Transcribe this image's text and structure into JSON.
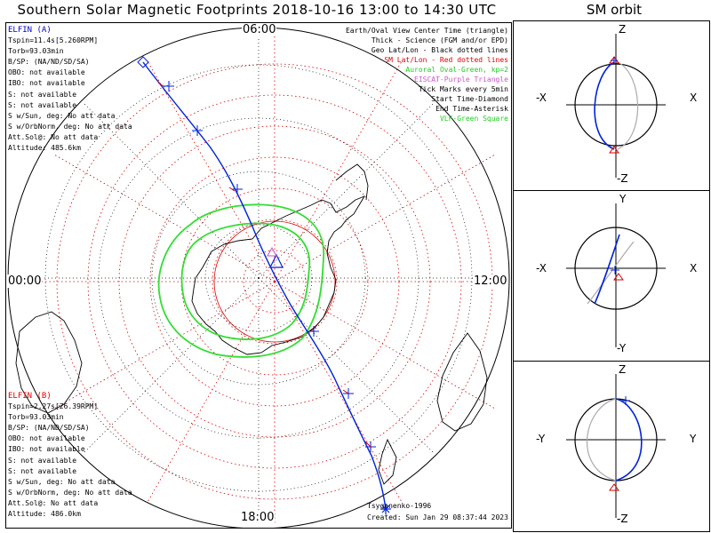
{
  "title": "Southern Solar Magnetic Footprints 2018-10-16 13:00 to 14:30 UTC",
  "sm_orbit_title": "SM orbit",
  "mlt_labels": {
    "top": "06:00",
    "left": "00:00",
    "right": "12:00",
    "bottom": "18:00"
  },
  "legend": [
    {
      "text": "Earth/Oval View Center Time (triangle)",
      "color": "#000000"
    },
    {
      "text": "Thick - Science (FGM and/or EPD)",
      "color": "#000000"
    },
    {
      "text": "Geo Lat/Lon - Black dotted lines",
      "color": "#000000"
    },
    {
      "text": "SM Lat/Lon - Red dotted lines",
      "color": "#e00000"
    },
    {
      "text": "Auroral Oval-Green, kp=2",
      "color": "#22cc22"
    },
    {
      "text": "EISCAT-Purple Triangle",
      "color": "#cc55cc"
    },
    {
      "text": "Tick Marks every 5min",
      "color": "#000000"
    },
    {
      "text": "Start Time-Diamond",
      "color": "#000000"
    },
    {
      "text": "End Time-Asterisk",
      "color": "#000000"
    },
    {
      "text": "VLF-Green Square",
      "color": "#22cc22"
    }
  ],
  "probe_a": {
    "name": "ELFIN (A)",
    "color": "#0000cc",
    "lines": [
      "Tspin=11.4s[5.260RPM]",
      "Torb=93.03min",
      "B/SP: (NA/ND/SD/SA)",
      "OBO: not available",
      "IBO: not available",
      "S: not available",
      "S: not available",
      "S w/Sun, deg: No att data",
      "S w/OrbNorm, deg: No att data",
      "Att.Sol@: No att data",
      "Altitude: 485.6km"
    ]
  },
  "probe_b": {
    "name": "ELFIN (B)",
    "color": "#e00000",
    "lines": [
      "Tspin=2.27s[26.39RPM]",
      "Torb=93.03min",
      "B/SP: (NA/ND/SD/SA)",
      "OBO: not available",
      "IBO: not available",
      "S: not available",
      "S: not available",
      "S w/Sun, deg: No att data",
      "S w/OrbNorm, deg: No att data",
      "Att.Sol@: No att data",
      "Altitude: 486.0km"
    ]
  },
  "credit": "Tsyganenko-1996",
  "created": "Created: Sun Jan 29 08:37:44 2023",
  "panels": [
    {
      "top": "Z",
      "bottom": "-Z",
      "left": "-X",
      "right": "X"
    },
    {
      "top": "Y",
      "bottom": "-Y",
      "left": "-X",
      "right": "X"
    },
    {
      "top": "Z",
      "bottom": "-Z",
      "left": "-Y",
      "right": "Y"
    }
  ],
  "colors": {
    "track": "#0022dd",
    "sm_grid": "#dd0000",
    "oval": "#33dd33",
    "eiscat": "#cc55cc"
  }
}
